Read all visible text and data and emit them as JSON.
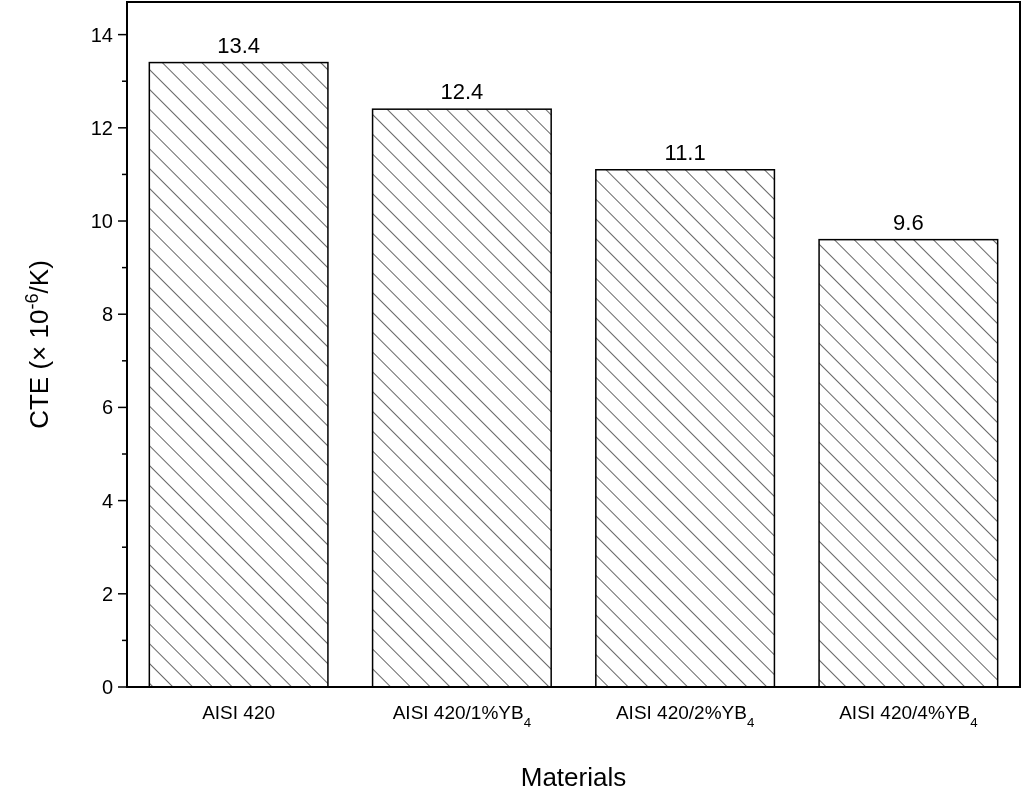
{
  "chart_data": {
    "type": "bar",
    "xlabel": "Materials",
    "ylabel": "CTE (× 10$^{-6}$/K)",
    "categories": [
      "AISI 420",
      "AISI 420/1%YB$_{4}$",
      "AISI 420/2%YB$_{4}$",
      "AISI 420/4%YB$_{4}$"
    ],
    "values": [
      13.4,
      12.4,
      11.1,
      9.6
    ],
    "color": "#000000",
    "data_labels": true,
    "ylim": [
      0,
      14.7
    ],
    "yticks": [
      0,
      {
        "value": 1,
        "label": null
      },
      2,
      {
        "value": 3,
        "label": null
      },
      4,
      {
        "value": 5,
        "label": null
      },
      6,
      {
        "value": 7,
        "label": null
      },
      8,
      {
        "value": 9,
        "label": null
      },
      10,
      {
        "value": 11,
        "label": null
      },
      12,
      {
        "value": 13,
        "label": null
      },
      14
    ]
  }
}
